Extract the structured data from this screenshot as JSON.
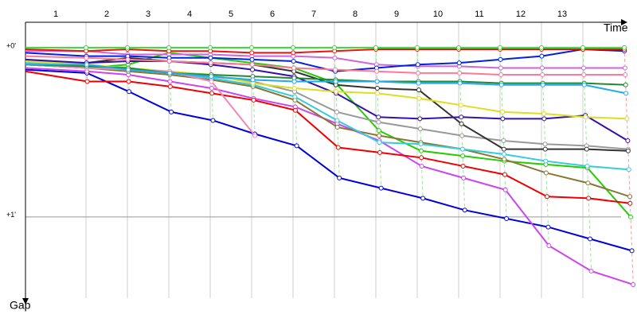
{
  "chart_data": {
    "type": "line",
    "x_label": "Time",
    "y_label": "Gap",
    "categories": [
      null,
      "1",
      "2",
      "3",
      "4",
      "5",
      "6",
      "7",
      "8",
      "9",
      "10",
      "11",
      "12",
      "13",
      null
    ],
    "ylim": [
      -0.15,
      1.48
    ],
    "yticks": [
      {
        "value": 0,
        "label": "+0'"
      },
      {
        "value": 1,
        "label": "+1'"
      }
    ],
    "y_reversed": true,
    "grid": true,
    "series": [
      {
        "color": "#0000dd",
        "values": [
          0.13,
          0.15,
          0.26,
          0.38,
          0.43,
          0.51,
          0.58,
          0.77,
          0.83,
          0.89,
          0.96,
          1.01,
          1.06,
          1.13,
          1.2
        ]
      },
      {
        "color": "#cc44ee",
        "values": [
          0.12,
          0.14,
          0.16,
          0.2,
          0.24,
          0.3,
          0.35,
          0.45,
          0.55,
          0.7,
          0.77,
          0.84,
          1.17,
          1.32,
          1.4
        ]
      },
      {
        "color": "#22cc00",
        "values": [
          0.1,
          0.12,
          0.1,
          0.03,
          0.06,
          0.09,
          0.12,
          0.21,
          0.49,
          0.61,
          0.64,
          0.67,
          0.69,
          0.71,
          1.0
        ]
      },
      {
        "color": "#ee0000",
        "values": [
          0.14,
          0.2,
          0.2,
          0.23,
          0.27,
          0.31,
          0.37,
          0.59,
          0.62,
          0.65,
          0.7,
          0.75,
          0.88,
          0.89,
          0.92
        ]
      },
      {
        "color": "#887733",
        "values": [
          0.1,
          0.12,
          0.14,
          0.16,
          0.19,
          0.23,
          0.31,
          0.47,
          0.52,
          0.56,
          0.6,
          0.66,
          0.74,
          0.8,
          0.88
        ]
      },
      {
        "color": "#33ccdd",
        "values": [
          0.09,
          0.11,
          0.13,
          0.15,
          0.18,
          0.22,
          0.29,
          0.43,
          0.56,
          0.57,
          0.6,
          0.63,
          0.67,
          0.7,
          0.72
        ]
      },
      {
        "color": "#999999",
        "values": [
          0.1,
          0.11,
          0.13,
          0.15,
          0.17,
          0.2,
          0.26,
          0.38,
          0.44,
          0.48,
          0.52,
          0.55,
          0.57,
          0.58,
          0.6
        ]
      },
      {
        "color": "#333333",
        "values": [
          0.08,
          0.09,
          0.06,
          0.08,
          0.09,
          0.1,
          0.14,
          0.22,
          0.24,
          0.25,
          0.45,
          0.6,
          0.6,
          0.6,
          0.61
        ]
      },
      {
        "color": "#3311aa",
        "values": [
          0.07,
          0.09,
          0.08,
          0.08,
          0.1,
          0.13,
          0.17,
          0.27,
          0.41,
          0.42,
          0.41,
          0.42,
          0.42,
          0.4,
          0.55
        ]
      },
      {
        "color": "#dddd22",
        "values": [
          0.08,
          0.1,
          0.12,
          0.14,
          0.16,
          0.21,
          0.24,
          0.26,
          0.27,
          0.3,
          0.34,
          0.38,
          0.39,
          0.41,
          0.42
        ]
      },
      {
        "color": "#ee88bb",
        "values": [
          0.1,
          0.12,
          0.13,
          0.14,
          0.2,
          0.52,
          null,
          null,
          null,
          null,
          null,
          null,
          null,
          null,
          null
        ]
      },
      {
        "color": "#cc66dd",
        "values": [
          0.02,
          0.02,
          0.04,
          0.04,
          0.04,
          0.05,
          0.05,
          0.06,
          0.1,
          0.11,
          0.11,
          0.12,
          0.12,
          0.12,
          0.12
        ]
      },
      {
        "color": "#0022dd",
        "values": [
          0.03,
          0.05,
          0.05,
          0.06,
          0.06,
          0.07,
          0.08,
          0.14,
          0.12,
          0.1,
          0.09,
          0.07,
          0.05,
          0.01,
          0.02
        ]
      },
      {
        "color": "#ee1111",
        "values": [
          0.01,
          0.02,
          0.01,
          0.02,
          0.02,
          0.03,
          0.03,
          0.02,
          0.01,
          0.01,
          0.01,
          0.01,
          0.01,
          0.01,
          0.01
        ]
      },
      {
        "color": "#33dd33",
        "values": [
          0,
          0,
          0,
          0,
          0,
          0,
          0,
          0,
          0,
          0,
          0,
          0,
          0,
          0,
          0
        ]
      },
      {
        "color": "#228833",
        "values": [
          0.1,
          0.11,
          0.12,
          0.15,
          0.16,
          0.17,
          0.18,
          0.19,
          0.2,
          0.2,
          0.2,
          0.21,
          0.21,
          0.21,
          0.22
        ]
      },
      {
        "color": "#22aaee",
        "values": [
          0.1,
          0.1,
          0.13,
          0.15,
          0.17,
          0.19,
          0.2,
          0.2,
          0.2,
          0.21,
          0.21,
          0.22,
          0.22,
          0.22,
          0.27
        ]
      },
      {
        "color": "#ff7799",
        "values": [
          0.05,
          0.06,
          0.07,
          0.08,
          0.09,
          0.1,
          0.12,
          0.13,
          0.14,
          0.15,
          0.15,
          0.16,
          0.16,
          0.16,
          0.16
        ]
      }
    ]
  }
}
